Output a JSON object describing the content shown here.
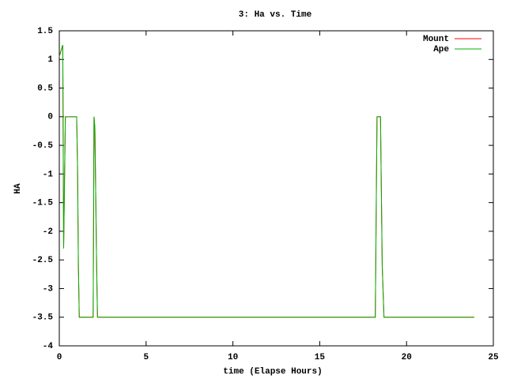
{
  "chart_data": {
    "type": "line",
    "title": "3: Ha vs. Time",
    "x_label": "time (Elapse Hours)",
    "y_label": "HA",
    "x": [
      0,
      0.2,
      0.25,
      0.35,
      1.0,
      1.05,
      1.1,
      1.15,
      1.95,
      2.0,
      2.05,
      2.15,
      2.2,
      18.2,
      18.3,
      18.5,
      18.6,
      18.7,
      23.9
    ],
    "series": [
      {
        "name": "Mount",
        "color": "#ff0000",
        "values": [
          1.05,
          1.25,
          -2.3,
          0,
          0,
          -0.85,
          -2.6,
          -3.5,
          -3.5,
          0,
          -0.2,
          -2.6,
          -3.5,
          -3.5,
          0,
          0,
          -2.6,
          -3.5,
          -3.5
        ]
      },
      {
        "name": "Ape",
        "color": "#00b000",
        "values": [
          1.05,
          1.25,
          -2.3,
          0,
          0,
          -0.85,
          -2.6,
          -3.5,
          -3.5,
          0,
          -0.2,
          -2.6,
          -3.5,
          -3.5,
          0,
          0,
          -2.6,
          -3.5,
          -3.5
        ]
      }
    ],
    "xlim": [
      0,
      25
    ],
    "xticks": [
      0,
      5,
      10,
      15,
      20,
      25
    ],
    "ylim": [
      -4,
      1.5
    ],
    "yticks": [
      1.5,
      1,
      0.5,
      0,
      -0.5,
      -1,
      -1.5,
      -2,
      -2.5,
      -3,
      -3.5,
      -4
    ],
    "legend": "top-right"
  }
}
